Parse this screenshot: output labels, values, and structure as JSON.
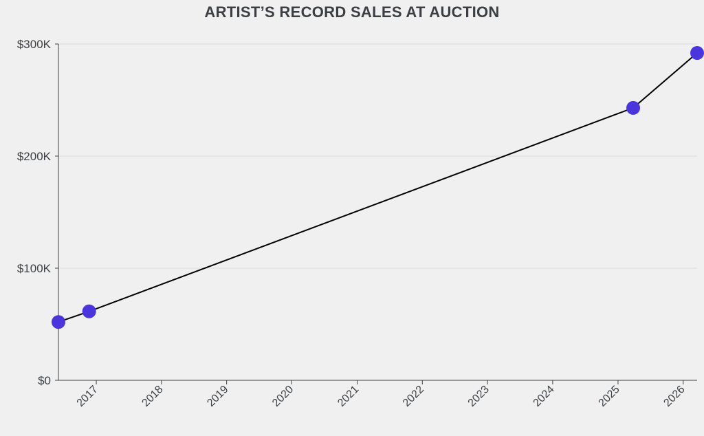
{
  "chart_data": {
    "type": "line",
    "title": "ARTIST’S RECORD SALES AT AUCTION",
    "xlabel": "",
    "ylabel": "",
    "x_tick_labels": [
      "2017",
      "2018",
      "2019",
      "2020",
      "2021",
      "2022",
      "2023",
      "2024",
      "2025",
      "2026"
    ],
    "y_tick_labels": [
      "$0",
      "$100K",
      "$200K",
      "$300K"
    ],
    "y_ticks": [
      0,
      100000,
      200000,
      300000
    ],
    "xlim": [
      "2016-06-03",
      "2026-03-20"
    ],
    "ylim": [
      0,
      300000
    ],
    "grid": "horizontal",
    "series": [
      {
        "points": [
          {
            "x": "2016-06-03",
            "y": 52000
          },
          {
            "x": "2016-11-22",
            "y": 61500
          },
          {
            "x": "2025-03-27",
            "y": 243000
          },
          {
            "x": "2026-03-20",
            "y": 292000
          }
        ]
      }
    ],
    "colors": {
      "line": "#000000",
      "marker": "#4a35dc",
      "grid": "#dddddd",
      "axis": "#3b3f43"
    }
  }
}
